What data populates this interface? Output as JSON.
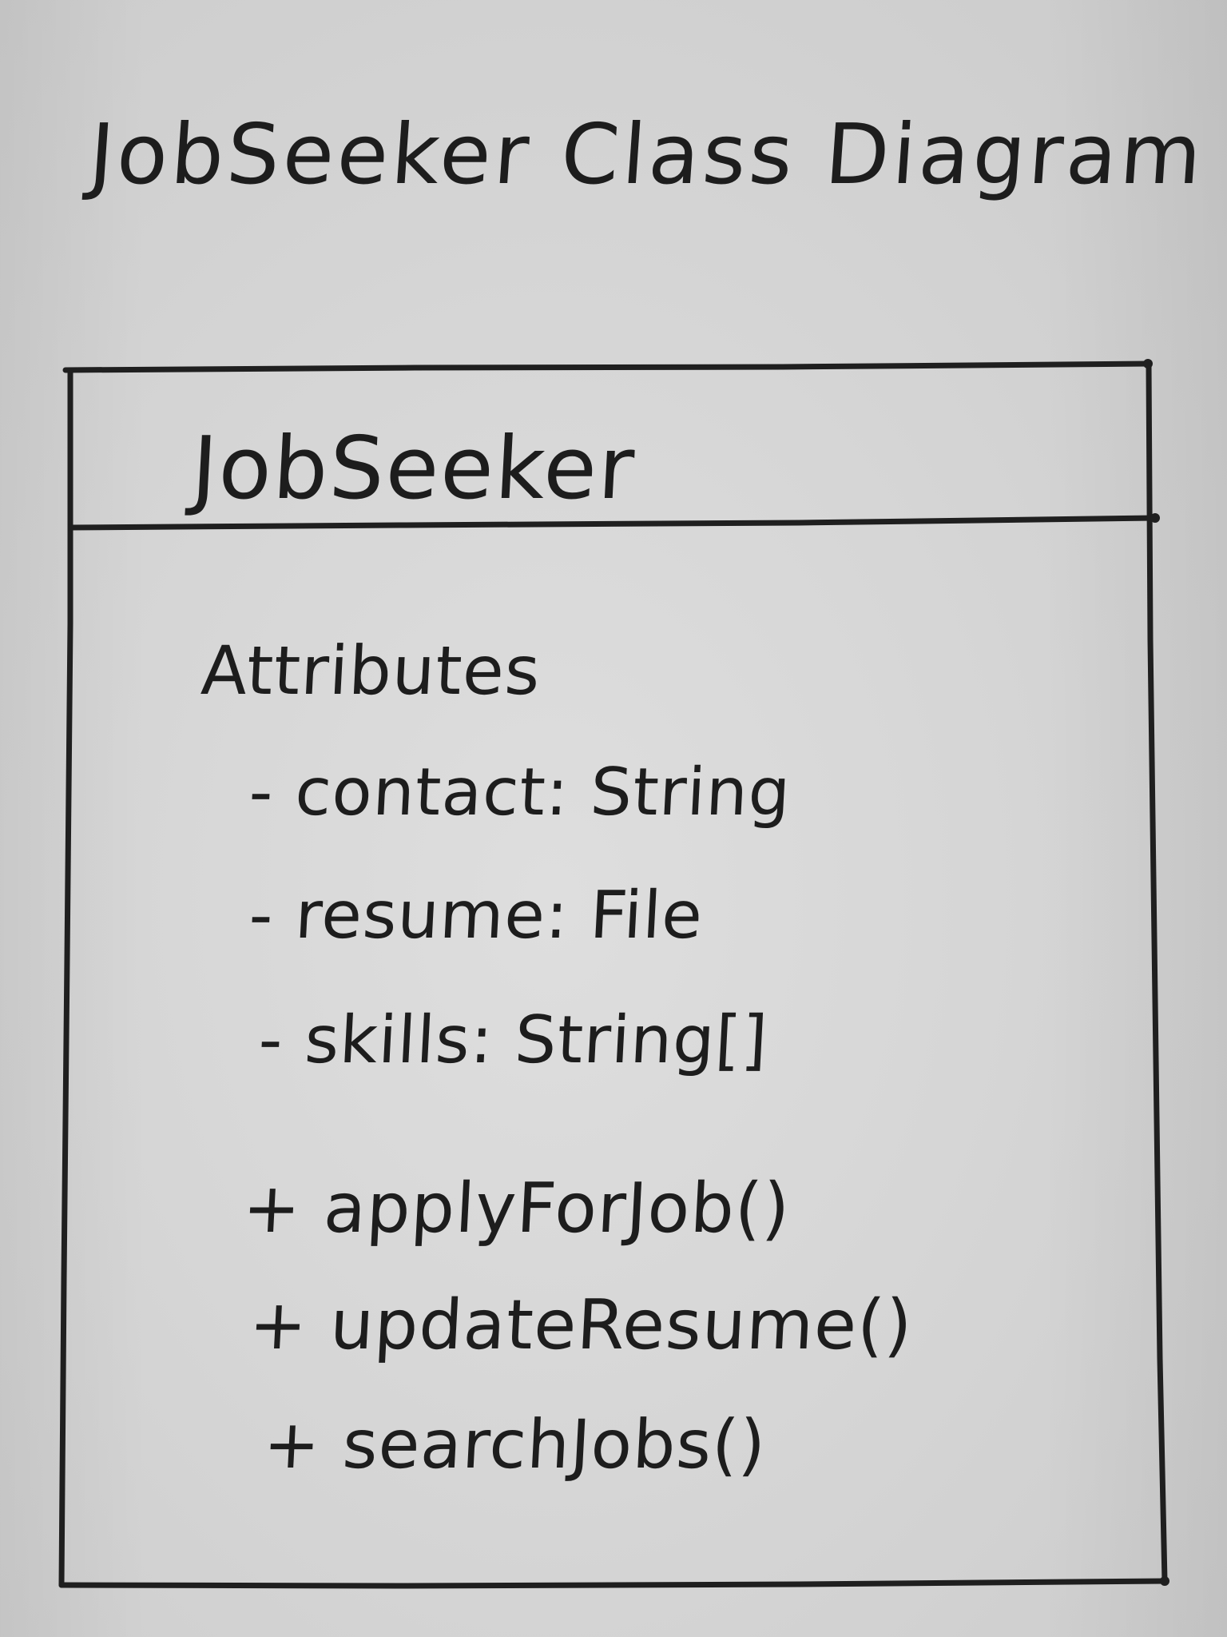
{
  "diagram_title": "JobSeeker Class Diagram",
  "class": {
    "name": "JobSeeker",
    "section_label": "Attributes",
    "attributes": [
      "- contact: String",
      "- resume: File",
      "- skills: String[]"
    ],
    "operations": [
      "+ applyForJob()",
      "+ updateResume()",
      "+ searchJobs()"
    ]
  }
}
